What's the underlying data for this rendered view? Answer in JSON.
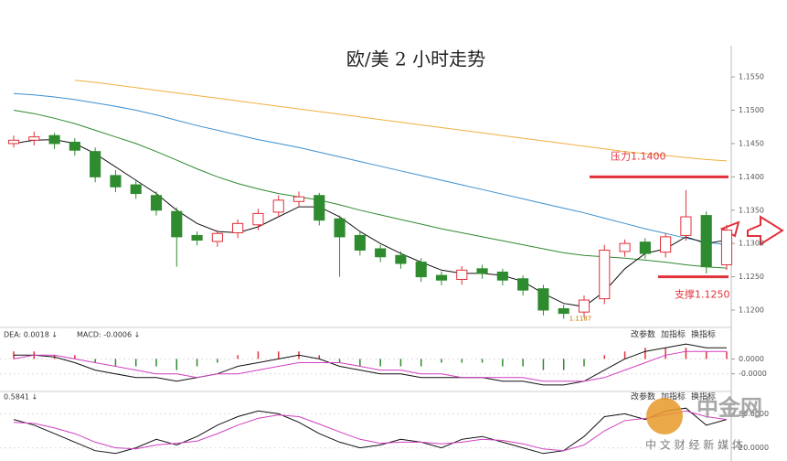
{
  "chart_data": [
    {
      "type": "candlestick",
      "title": "欧/美 2 小时走势",
      "open": [
        1.145,
        1.1455,
        1.1462,
        1.1452,
        1.1438,
        1.1402,
        1.1388,
        1.1372,
        1.1348,
        1.1312,
        1.1303,
        1.1316,
        1.1328,
        1.1347,
        1.1363,
        1.1372,
        1.1337,
        1.1312,
        1.1292,
        1.1282,
        1.1272,
        1.1252,
        1.1246,
        1.1262,
        1.1257,
        1.1247,
        1.1232,
        1.1202,
        1.1197,
        1.1217,
        1.1288,
        1.1302,
        1.1287,
        1.1312,
        1.1342,
        1.1268
      ],
      "high": [
        1.1462,
        1.1468,
        1.1466,
        1.1458,
        1.1444,
        1.141,
        1.1394,
        1.1378,
        1.1354,
        1.1318,
        1.132,
        1.1336,
        1.1352,
        1.1372,
        1.1378,
        1.1376,
        1.1342,
        1.1318,
        1.1298,
        1.1288,
        1.1278,
        1.1258,
        1.1266,
        1.1268,
        1.1262,
        1.1252,
        1.1238,
        1.1208,
        1.1222,
        1.1298,
        1.1306,
        1.1308,
        1.1316,
        1.138,
        1.1348,
        1.1328
      ],
      "low": [
        1.1444,
        1.1447,
        1.1442,
        1.1432,
        1.1392,
        1.1377,
        1.1367,
        1.1342,
        1.1265,
        1.1297,
        1.1295,
        1.1308,
        1.132,
        1.1339,
        1.1355,
        1.1327,
        1.125,
        1.1282,
        1.1272,
        1.1262,
        1.1242,
        1.1237,
        1.1238,
        1.1247,
        1.1237,
        1.1222,
        1.1192,
        1.1187,
        1.1189,
        1.1209,
        1.128,
        1.1277,
        1.1279,
        1.1304,
        1.1255,
        1.126
      ],
      "close": [
        1.1455,
        1.146,
        1.145,
        1.144,
        1.14,
        1.1385,
        1.1375,
        1.135,
        1.131,
        1.1305,
        1.1315,
        1.133,
        1.1345,
        1.1365,
        1.137,
        1.1335,
        1.131,
        1.129,
        1.128,
        1.127,
        1.125,
        1.1245,
        1.126,
        1.1255,
        1.1245,
        1.123,
        1.12,
        1.1195,
        1.1215,
        1.129,
        1.13,
        1.1285,
        1.131,
        1.134,
        1.1265,
        1.132
      ],
      "up_color": "#e0303a",
      "down_color": "#2e8b2e",
      "series": [
        {
          "color": "#f0b040",
          "values": [
            null,
            null,
            null,
            1.1545,
            1.1542,
            1.1538,
            1.1534,
            1.153,
            1.1526,
            1.1522,
            1.1518,
            1.1514,
            1.151,
            1.1506,
            1.1502,
            1.1498,
            1.1494,
            1.149,
            1.1486,
            1.1482,
            1.1478,
            1.1474,
            1.147,
            1.1466,
            1.1462,
            1.1458,
            1.1454,
            1.145,
            1.1446,
            1.1442,
            1.1438,
            1.1435,
            1.1432,
            1.1429,
            1.1426,
            1.1424
          ]
        },
        {
          "color": "#3a8fd0",
          "values": [
            1.1525,
            1.1523,
            1.152,
            1.1516,
            1.1511,
            1.1506,
            1.15,
            1.1493,
            1.1485,
            1.1477,
            1.147,
            1.1463,
            1.1456,
            1.145,
            1.1444,
            1.1437,
            1.143,
            1.1423,
            1.1416,
            1.1409,
            1.1402,
            1.1395,
            1.1388,
            1.1381,
            1.1374,
            1.1367,
            1.136,
            1.1353,
            1.1346,
            1.1338,
            1.133,
            1.1322,
            1.1315,
            1.1308,
            1.1302,
            1.1298
          ]
        },
        {
          "color": "#2f8a2f",
          "values": [
            1.15,
            1.1495,
            1.1488,
            1.148,
            1.147,
            1.146,
            1.145,
            1.1438,
            1.1425,
            1.1412,
            1.14,
            1.139,
            1.1382,
            1.1375,
            1.137,
            1.1365,
            1.1358,
            1.135,
            1.1343,
            1.1336,
            1.1329,
            1.1322,
            1.1316,
            1.131,
            1.1304,
            1.1298,
            1.1292,
            1.1286,
            1.1282,
            1.128,
            1.1278,
            1.1275,
            1.1272,
            1.1268,
            1.1265,
            1.1263
          ]
        },
        {
          "color": "#111111",
          "values": [
            1.145,
            1.1455,
            1.1456,
            1.145,
            1.1435,
            1.1415,
            1.1395,
            1.1375,
            1.135,
            1.133,
            1.1318,
            1.1316,
            1.1325,
            1.134,
            1.1355,
            1.1355,
            1.134,
            1.1318,
            1.13,
            1.1285,
            1.1272,
            1.126,
            1.1255,
            1.1255,
            1.1252,
            1.1243,
            1.1225,
            1.121,
            1.1205,
            1.1228,
            1.1262,
            1.1285,
            1.1292,
            1.131,
            1.13,
            1.1305
          ]
        }
      ],
      "ylim": [
        1.1178,
        1.159
      ],
      "yticks": [
        {
          "value": 1.12,
          "label": "1.1200"
        },
        {
          "value": 1.125,
          "label": "1.1250"
        },
        {
          "value": 1.13,
          "label": "1.1300"
        },
        {
          "value": 1.135,
          "label": "1.1350"
        },
        {
          "value": 1.14,
          "label": "1.1400"
        },
        {
          "value": 1.145,
          "label": "1.1450"
        },
        {
          "value": 1.15,
          "label": "1.1500"
        },
        {
          "value": 1.155,
          "label": "1.1550"
        }
      ],
      "annotations": [
        {
          "text": "压力1.1400",
          "value": 1.14,
          "color": "#e0303a"
        },
        {
          "text": "支撑1.1250",
          "value": 1.125,
          "color": "#e0303a"
        }
      ],
      "low_label": 1.1187
    },
    {
      "type": "macd",
      "header": [
        "DEA: 0.0018 ↓",
        "MACD: -0.0006 ↓"
      ],
      "toolbar": [
        "改参数",
        "加指标",
        "换指标"
      ],
      "values": [
        2e-05,
        2e-05,
        1e-05,
        1e-05,
        -1e-05,
        -2e-05,
        -2e-05,
        -2e-05,
        -3e-05,
        -2e-05,
        -1e-05,
        1e-05,
        2e-05,
        2e-05,
        2e-05,
        1e-05,
        -1e-05,
        -2e-05,
        -2e-05,
        -2e-05,
        -2e-05,
        -1e-05,
        -1e-05,
        -1e-05,
        -2e-05,
        -2e-05,
        -3e-05,
        -3e-05,
        -2e-05,
        1e-05,
        2e-05,
        3e-05,
        3e-05,
        3e-05,
        2e-05,
        2e-05
      ],
      "up_color": "#e0303a",
      "down_color": "#2e8b2e",
      "series": [
        {
          "color": "#111111",
          "values": [
            1e-05,
            1e-05,
            5e-06,
            -1e-05,
            -3e-05,
            -4e-05,
            -5e-05,
            -5e-05,
            -6e-05,
            -5e-05,
            -4e-05,
            -2e-05,
            -1e-05,
            0,
            1e-05,
            0,
            -2e-05,
            -3e-05,
            -4e-05,
            -4e-05,
            -5e-05,
            -5e-05,
            -5e-05,
            -5e-05,
            -6e-05,
            -6e-05,
            -7e-05,
            -7e-05,
            -6e-05,
            -3e-05,
            0,
            2e-05,
            3e-05,
            4e-05,
            3e-05,
            3e-05
          ]
        },
        {
          "color": "#d040c0",
          "values": [
            0,
            1e-05,
            1e-05,
            0,
            -1e-05,
            -2e-05,
            -3e-05,
            -4e-05,
            -4e-05,
            -5e-05,
            -4e-05,
            -4e-05,
            -3e-05,
            -2e-05,
            -1e-05,
            -1e-05,
            -1e-05,
            -2e-05,
            -3e-05,
            -3e-05,
            -4e-05,
            -4e-05,
            -5e-05,
            -5e-05,
            -5e-05,
            -5e-05,
            -6e-05,
            -6e-05,
            -6e-05,
            -5e-05,
            -3e-05,
            -1e-05,
            1e-05,
            2e-05,
            2e-05,
            2e-05
          ]
        }
      ],
      "ylim": [
        -8e-05,
        5e-05
      ],
      "yticks": [
        {
          "value": 0,
          "label": "0.0000"
        },
        {
          "value": -4e-05,
          "label": "-0.0000"
        }
      ]
    },
    {
      "type": "kd",
      "header": [
        "0.5841 ↓"
      ],
      "toolbar": [
        "改参数",
        "加指标",
        "换指标"
      ],
      "series": [
        {
          "color": "#111111",
          "values": [
            70,
            60,
            45,
            30,
            15,
            10,
            20,
            35,
            25,
            40,
            60,
            75,
            85,
            80,
            65,
            45,
            30,
            20,
            25,
            35,
            30,
            20,
            35,
            40,
            30,
            20,
            10,
            15,
            40,
            75,
            80,
            70,
            85,
            90,
            60,
            70
          ]
        },
        {
          "color": "#d040c0",
          "values": [
            65,
            63,
            55,
            45,
            30,
            20,
            18,
            25,
            28,
            32,
            45,
            60,
            72,
            78,
            75,
            62,
            48,
            35,
            28,
            30,
            30,
            27,
            30,
            35,
            33,
            27,
            18,
            15,
            25,
            50,
            68,
            72,
            78,
            85,
            75,
            70
          ]
        }
      ],
      "ylim": [
        0,
        100
      ],
      "yticks": [
        {
          "value": 80,
          "label": "80.0000"
        },
        {
          "value": 20,
          "label": "20.0000"
        }
      ]
    }
  ],
  "watermark": {
    "logo": "中金网",
    "slogan": "中 文 财 经 新 媒 体"
  }
}
